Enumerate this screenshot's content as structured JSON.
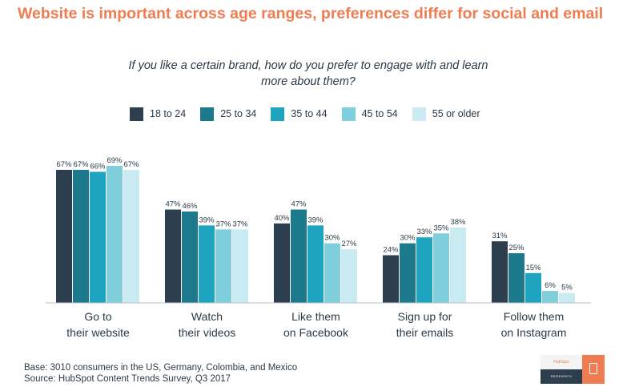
{
  "header": {
    "title": "Website is important across age ranges, preferences differ for social and email",
    "subtitle": "If you like a certain brand, how do you prefer to engage with and learn more about them?"
  },
  "legend": {
    "items": [
      {
        "label": "18 to 24",
        "color": "#2d3e4f"
      },
      {
        "label": "25 to 34",
        "color": "#1d7a8c"
      },
      {
        "label": "35 to 44",
        "color": "#1fa4bf"
      },
      {
        "label": "45 to 54",
        "color": "#7fd0dc"
      },
      {
        "label": "55 or older",
        "color": "#c9ebf1"
      }
    ]
  },
  "chart_data": {
    "type": "bar",
    "title": "If you like a certain brand, how do you prefer to engage with and learn more about them?",
    "categories": [
      [
        "Go to",
        "their website"
      ],
      [
        "Watch",
        "their videos"
      ],
      [
        "Like them",
        "on Facebook"
      ],
      [
        "Sign up for",
        "their emails"
      ],
      [
        "Follow them",
        "on Instagram"
      ]
    ],
    "series": [
      {
        "name": "18 to 24",
        "color": "#2d3e4f",
        "values": [
          67,
          47,
          40,
          24,
          31
        ]
      },
      {
        "name": "25 to 34",
        "color": "#1d7a8c",
        "values": [
          67,
          46,
          47,
          30,
          25
        ]
      },
      {
        "name": "35 to 44",
        "color": "#1fa4bf",
        "values": [
          66,
          39,
          39,
          33,
          15
        ]
      },
      {
        "name": "45 to 54",
        "color": "#7fd0dc",
        "values": [
          69,
          37,
          30,
          35,
          6
        ]
      },
      {
        "name": "55 or older",
        "color": "#c9ebf1",
        "values": [
          67,
          37,
          27,
          38,
          5
        ]
      }
    ],
    "value_suffix": "%",
    "ylim": [
      0,
      69
    ],
    "grid": false,
    "legend_position": "top"
  },
  "footer": {
    "base": "Base: 3010 consumers in the US, Germany, Colombia, and Mexico",
    "source": "Source: HubSpot Content Trends Survey, Q3 2017"
  },
  "logo": {
    "brand": "HubSpot",
    "tag": "RESEARCH"
  }
}
